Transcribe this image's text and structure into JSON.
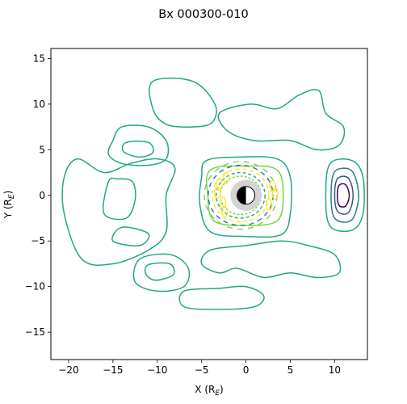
{
  "chart_data": {
    "type": "contour",
    "title": "Bx 000300-010",
    "xlabel": "X (R",
    "xlabel_sub": "E",
    "xlabel_close": ")",
    "ylabel": "Y (R",
    "ylabel_sub": "E",
    "ylabel_close": ")",
    "xlim": [
      -22.0,
      13.7
    ],
    "ylim": [
      -18.0,
      16.1
    ],
    "x_ticks": [
      -20,
      -15,
      -10,
      -5,
      0,
      5,
      10
    ],
    "y_ticks": [
      -15,
      -10,
      -5,
      0,
      5,
      10,
      15
    ],
    "planet": {
      "x": 0,
      "y": 0,
      "radius": 1,
      "shield_radius": 1.75
    },
    "grid": false,
    "colormap": "viridis",
    "colors": {
      "outer": "#21a685",
      "mid": "#2a788e",
      "deep": "#3b528b",
      "darkest": "#440154",
      "light": "#7ad151",
      "bright": "#fde725",
      "shield": "#d3d3d3"
    },
    "regions": [
      {
        "name": "magnetosheath-boundary",
        "points": [
          [
            -19,
            4
          ],
          [
            -20.5,
            2
          ],
          [
            -20.5,
            -2
          ],
          [
            -18.5,
            -7
          ],
          [
            -15,
            -7.5
          ],
          [
            -11,
            -6
          ],
          [
            -9,
            -4
          ],
          [
            -9,
            0
          ],
          [
            -8,
            3
          ],
          [
            -10,
            4
          ],
          [
            -13,
            3.5
          ],
          [
            -16,
            2.5
          ]
        ]
      },
      {
        "name": "tail-lobe-inner",
        "points": [
          [
            -15.5,
            1.5
          ],
          [
            -16,
            -2
          ],
          [
            -13.5,
            -2.5
          ],
          [
            -12.5,
            -0.5
          ],
          [
            -12.8,
            1.5
          ],
          [
            -14.5,
            1.8
          ]
        ]
      },
      {
        "name": "tail-lobe-inner-south",
        "points": [
          [
            -14,
            -3.5
          ],
          [
            -15,
            -5
          ],
          [
            -12,
            -5.5
          ],
          [
            -11,
            -4.2
          ]
        ]
      },
      {
        "name": "north-upper-blob",
        "points": [
          [
            -10.5,
            12.5
          ],
          [
            -6,
            12.5
          ],
          [
            -3.5,
            10
          ],
          [
            -3.8,
            8
          ],
          [
            -6,
            7.5
          ],
          [
            -9,
            7.8
          ],
          [
            -10.5,
            9.5
          ]
        ]
      },
      {
        "name": "north-lobe",
        "points": [
          [
            -15,
            6
          ],
          [
            -14,
            7.5
          ],
          [
            -11,
            7.5
          ],
          [
            -9,
            6
          ],
          [
            -9,
            4
          ],
          [
            -11,
            3.3
          ],
          [
            -14,
            3.5
          ],
          [
            -15.5,
            4.5
          ]
        ]
      },
      {
        "name": "north-lobe-inner",
        "points": [
          [
            -13.5,
            5.8
          ],
          [
            -11,
            5.8
          ],
          [
            -10.5,
            4.7
          ],
          [
            -12,
            4.2
          ],
          [
            -13.8,
            4.8
          ]
        ]
      },
      {
        "name": "south-lobe",
        "points": [
          [
            -12,
            -7
          ],
          [
            -8.5,
            -6.5
          ],
          [
            -6.5,
            -8
          ],
          [
            -7,
            -10
          ],
          [
            -10,
            -10.5
          ],
          [
            -12.5,
            -9.5
          ]
        ]
      },
      {
        "name": "south-lobe-inner",
        "points": [
          [
            -11,
            -7.6
          ],
          [
            -8.6,
            -7.5
          ],
          [
            -8.2,
            -8.7
          ],
          [
            -10.2,
            -9.3
          ],
          [
            -11.3,
            -8.6
          ]
        ]
      },
      {
        "name": "far-south-blob",
        "points": [
          [
            -7,
            -10.5
          ],
          [
            -3,
            -10.2
          ],
          [
            0,
            -10
          ],
          [
            2,
            -11
          ],
          [
            1,
            -12.2
          ],
          [
            -3,
            -12.5
          ],
          [
            -7,
            -12.2
          ]
        ]
      },
      {
        "name": "near-north-ring",
        "points": [
          [
            -4.5,
            3.8
          ],
          [
            -1,
            4.2
          ],
          [
            3.5,
            4
          ],
          [
            5,
            2
          ],
          [
            5,
            -2
          ],
          [
            4,
            -4.3
          ],
          [
            0,
            -4.5
          ],
          [
            -4,
            -4
          ],
          [
            -5.2,
            -1
          ],
          [
            -5,
            2
          ]
        ]
      },
      {
        "name": "near-ring-mid",
        "points": [
          [
            -4,
            2.8
          ],
          [
            0,
            3.2
          ],
          [
            3.5,
            2.8
          ],
          [
            4.2,
            0
          ],
          [
            3.5,
            -2.8
          ],
          [
            0,
            -3.3
          ],
          [
            -3.6,
            -2.8
          ],
          [
            -4.3,
            0
          ]
        ]
      },
      {
        "name": "north-structures",
        "points": [
          [
            -3,
            9
          ],
          [
            0.5,
            10
          ],
          [
            3.5,
            9.5
          ],
          [
            6,
            11
          ],
          [
            8.2,
            11.5
          ],
          [
            9,
            9
          ],
          [
            11,
            7.5
          ],
          [
            10.5,
            5.5
          ],
          [
            8,
            5
          ],
          [
            5,
            6
          ],
          [
            1,
            6
          ],
          [
            -2,
            7
          ]
        ]
      },
      {
        "name": "south-structures",
        "points": [
          [
            -4,
            -6
          ],
          [
            0,
            -5.5
          ],
          [
            4,
            -5
          ],
          [
            7,
            -5.5
          ],
          [
            10,
            -6.5
          ],
          [
            10.5,
            -8.5
          ],
          [
            8,
            -9
          ],
          [
            5,
            -8.5
          ],
          [
            2,
            -9
          ],
          [
            -1,
            -8
          ],
          [
            -3,
            -8.5
          ],
          [
            -5,
            -7.5
          ]
        ]
      },
      {
        "name": "dayside-boundary",
        "points": [
          [
            9.5,
            3.5
          ],
          [
            12,
            3.8
          ],
          [
            13.2,
            2
          ],
          [
            13.2,
            -2
          ],
          [
            12,
            -3.8
          ],
          [
            9.5,
            -3.4
          ],
          [
            9,
            0
          ]
        ]
      },
      {
        "name": "dayside-inner-1",
        "points": [
          [
            10,
            2.6
          ],
          [
            11.8,
            2.8
          ],
          [
            12.6,
            1
          ],
          [
            12.6,
            -1
          ],
          [
            11.8,
            -2.8
          ],
          [
            10,
            -2.5
          ],
          [
            9.6,
            0
          ]
        ]
      },
      {
        "name": "dayside-inner-2",
        "points": [
          [
            10.3,
            1.8
          ],
          [
            11.4,
            2
          ],
          [
            12,
            0.8
          ],
          [
            12,
            -0.8
          ],
          [
            11.4,
            -2
          ],
          [
            10.3,
            -1.7
          ],
          [
            10,
            0
          ]
        ]
      },
      {
        "name": "dayside-core",
        "points": [
          [
            10.5,
            1.1
          ],
          [
            11.2,
            1.2
          ],
          [
            11.6,
            0.4
          ],
          [
            11.6,
            -0.4
          ],
          [
            11.2,
            -1.2
          ],
          [
            10.5,
            -1.1
          ],
          [
            10.3,
            0
          ]
        ]
      }
    ]
  }
}
